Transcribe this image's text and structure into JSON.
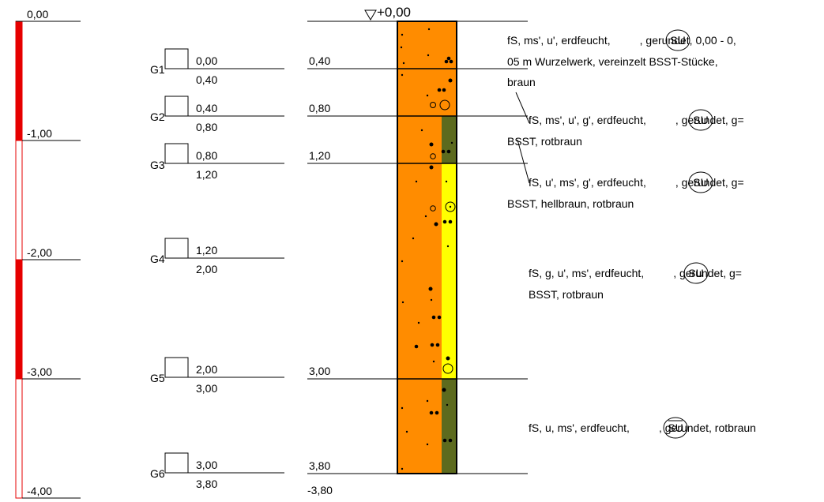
{
  "depth_scale": {
    "labels": [
      "0,00",
      "-1,00",
      "-2,00",
      "-3,00",
      "-4,00"
    ],
    "depths": [
      0,
      1,
      2,
      3,
      4
    ],
    "colors": {
      "filled": "#e60000",
      "empty": "#ffffff",
      "border": "#e60000"
    }
  },
  "samples": [
    {
      "id": "G1",
      "top": "0,00",
      "bottom": "0,40"
    },
    {
      "id": "G2",
      "top": "0,40",
      "bottom": "0,80"
    },
    {
      "id": "G3",
      "top": "0,80",
      "bottom": "1,20"
    },
    {
      "id": "G4",
      "top": "1,20",
      "bottom": "2,00"
    },
    {
      "id": "G5",
      "top": "2,00",
      "bottom": "3,00"
    },
    {
      "id": "G6",
      "top": "3,00",
      "bottom": "3,80"
    }
  ],
  "layer_bottoms": [
    "0,40",
    "0,80",
    "1,20",
    "3,00",
    "3,80"
  ],
  "final_depth": "-3,80",
  "water_level": "+0,00",
  "column": {
    "colors": {
      "main": "#ff8c00",
      "dark": "#5c6a1e",
      "yellow": "#ffff00"
    }
  },
  "descriptions": [
    {
      "before": "fS, ms', u', erdfeucht,",
      "symbol": "SU",
      "after": ", gerundet, 0,00 - 0,",
      "lines": [
        "05 m Wurzelwerk, vereinzelt BSST-Stücke,",
        "braun"
      ]
    },
    {
      "before": "fS, ms', u', g', erdfeucht,",
      "symbol": "SU",
      "after": ", gerundet, g=",
      "lines": [
        "BSST, rotbraun"
      ]
    },
    {
      "before": "fS, u', ms', g', erdfeucht,",
      "symbol": "SU",
      "after": ", gerundet, g=",
      "lines": [
        "BSST, hellbraun, rotbraun"
      ]
    },
    {
      "before": "fS, g, u', ms', erdfeucht,",
      "symbol": "SU",
      "after": ", gerundet, g=",
      "lines": [
        "BSST, rotbraun"
      ]
    },
    {
      "before": "fS, u, ms', erdfeucht,",
      "symbol": "SU",
      "after": ", gerundet, rotbraun",
      "lines": []
    }
  ]
}
